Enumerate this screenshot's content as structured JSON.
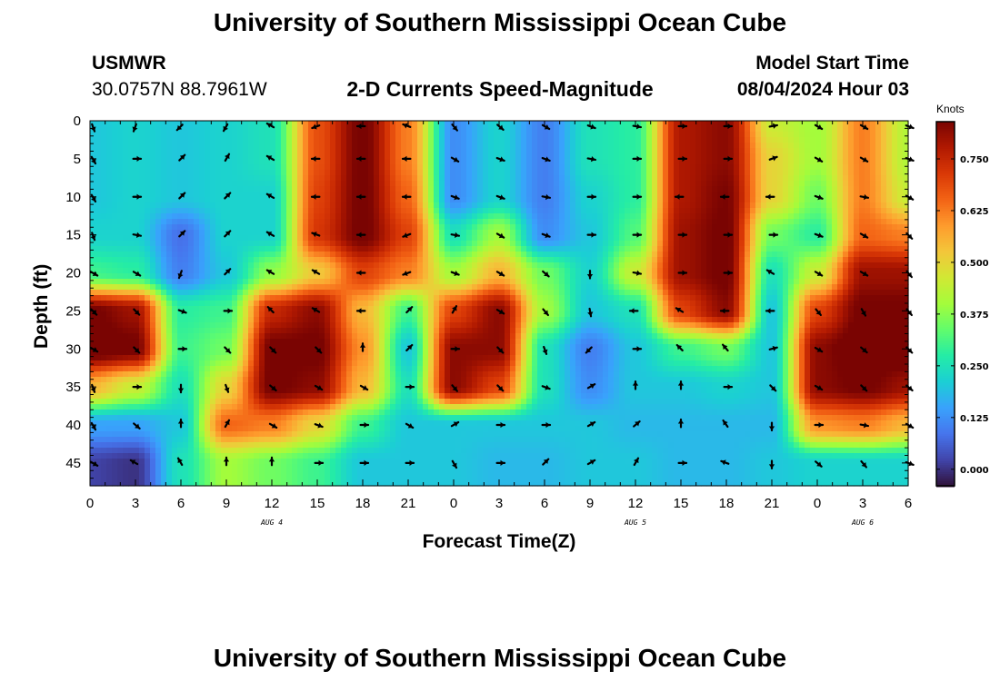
{
  "header": {
    "title": "University of Southern Mississippi Ocean Cube",
    "station": "USMWR",
    "coords": "30.0757N  88.7961W",
    "subtitle": "2-D Currents Speed-Magnitude",
    "model_label": "Model Start Time",
    "model_time": "08/04/2024 Hour 03"
  },
  "footer": {
    "title": "University of Southern Mississippi Ocean Cube"
  },
  "colorbar": {
    "title": "Knots",
    "ticks": [
      "0.000",
      "0.125",
      "0.250",
      "0.375",
      "0.500",
      "0.625",
      "0.750"
    ],
    "tick_values": [
      0,
      0.125,
      0.25,
      0.375,
      0.5,
      0.625,
      0.75
    ],
    "range": [
      -0.04,
      0.84
    ],
    "colors": [
      "#30123b",
      "#4145ab",
      "#4675ed",
      "#39a2fc",
      "#1bcfd4",
      "#24eca6",
      "#61fc6c",
      "#a4fc3b",
      "#d1e834",
      "#f3c63a",
      "#fe9b2d",
      "#f36315",
      "#d93806",
      "#b11901",
      "#7a0402"
    ]
  },
  "chart_data": {
    "type": "heatmap",
    "title": "2-D Currents Speed-Magnitude",
    "xlabel": "Forecast Time(Z)",
    "ylabel": "Depth (ft)",
    "xlim": [
      0,
      54
    ],
    "ylim": [
      0,
      48
    ],
    "x_tick_values": [
      0,
      3,
      6,
      9,
      12,
      15,
      18,
      21,
      24,
      27,
      30,
      33,
      36,
      39,
      42,
      45,
      48,
      51,
      54
    ],
    "x_tick_labels": [
      "0",
      "3",
      "6",
      "9",
      "12",
      "15",
      "18",
      "21",
      "0",
      "3",
      "6",
      "9",
      "12",
      "15",
      "18",
      "21",
      "0",
      "3",
      "6"
    ],
    "y_ticks": [
      0,
      5,
      10,
      15,
      20,
      25,
      30,
      35,
      40,
      45
    ],
    "date_labels": [
      {
        "x": 12,
        "text": "AUG 4"
      },
      {
        "x": 36,
        "text": "AUG 5"
      },
      {
        "x": 51,
        "text": "AUG 6"
      }
    ],
    "units": "Knots",
    "x": [
      0,
      3,
      6,
      9,
      12,
      15,
      18,
      21,
      24,
      27,
      30,
      33,
      36,
      39,
      42,
      45,
      48,
      51,
      54
    ],
    "depths": [
      0,
      5,
      10,
      15,
      20,
      25,
      30,
      35,
      40,
      45
    ],
    "speed": [
      [
        0.2,
        0.22,
        0.2,
        0.22,
        0.25,
        0.68,
        0.85,
        0.62,
        0.12,
        0.22,
        0.1,
        0.25,
        0.28,
        0.78,
        0.82,
        0.45,
        0.4,
        0.62,
        0.42
      ],
      [
        0.2,
        0.22,
        0.2,
        0.22,
        0.25,
        0.68,
        0.85,
        0.62,
        0.12,
        0.22,
        0.1,
        0.25,
        0.28,
        0.78,
        0.82,
        0.5,
        0.4,
        0.62,
        0.42
      ],
      [
        0.2,
        0.22,
        0.2,
        0.22,
        0.22,
        0.7,
        0.85,
        0.65,
        0.12,
        0.22,
        0.1,
        0.22,
        0.28,
        0.78,
        0.84,
        0.5,
        0.35,
        0.62,
        0.45
      ],
      [
        0.22,
        0.22,
        0.08,
        0.22,
        0.22,
        0.72,
        0.85,
        0.7,
        0.25,
        0.4,
        0.12,
        0.2,
        0.32,
        0.8,
        0.85,
        0.35,
        0.28,
        0.65,
        0.62
      ],
      [
        0.3,
        0.28,
        0.1,
        0.2,
        0.38,
        0.52,
        0.7,
        0.62,
        0.4,
        0.55,
        0.35,
        0.22,
        0.45,
        0.8,
        0.85,
        0.25,
        0.45,
        0.8,
        0.8
      ],
      [
        0.85,
        0.8,
        0.28,
        0.3,
        0.75,
        0.82,
        0.55,
        0.3,
        0.7,
        0.82,
        0.4,
        0.2,
        0.25,
        0.7,
        0.82,
        0.2,
        0.7,
        0.85,
        0.85
      ],
      [
        0.88,
        0.85,
        0.3,
        0.35,
        0.85,
        0.85,
        0.6,
        0.2,
        0.82,
        0.82,
        0.25,
        0.1,
        0.2,
        0.3,
        0.35,
        0.2,
        0.82,
        0.88,
        0.88
      ],
      [
        0.55,
        0.45,
        0.25,
        0.5,
        0.85,
        0.82,
        0.55,
        0.25,
        0.82,
        0.7,
        0.25,
        0.12,
        0.2,
        0.2,
        0.22,
        0.2,
        0.82,
        0.85,
        0.8
      ],
      [
        0.15,
        0.15,
        0.2,
        0.65,
        0.62,
        0.5,
        0.3,
        0.2,
        0.2,
        0.2,
        0.2,
        0.2,
        0.18,
        0.18,
        0.18,
        0.18,
        0.6,
        0.62,
        0.55
      ],
      [
        0.02,
        0.0,
        0.25,
        0.4,
        0.35,
        0.3,
        0.2,
        0.2,
        0.2,
        0.18,
        0.18,
        0.2,
        0.2,
        0.18,
        0.18,
        0.2,
        0.22,
        0.22,
        0.22
      ]
    ],
    "direction_deg": [
      [
        160,
        200,
        225,
        210,
        300,
        250,
        270,
        290,
        140,
        130,
        120,
        110,
        100,
        90,
        90,
        80,
        120,
        120,
        110
      ],
      [
        150,
        90,
        45,
        30,
        300,
        270,
        270,
        270,
        120,
        110,
        110,
        100,
        90,
        90,
        90,
        70,
        120,
        120,
        110
      ],
      [
        150,
        90,
        45,
        45,
        300,
        270,
        270,
        270,
        110,
        110,
        100,
        90,
        90,
        270,
        270,
        270,
        110,
        100,
        120
      ],
      [
        160,
        100,
        45,
        45,
        300,
        290,
        270,
        250,
        100,
        120,
        110,
        90,
        90,
        90,
        90,
        90,
        110,
        120,
        135
      ],
      [
        120,
        120,
        200,
        45,
        300,
        300,
        270,
        250,
        110,
        120,
        130,
        180,
        100,
        90,
        90,
        300,
        120,
        120,
        140
      ],
      [
        135,
        135,
        110,
        90,
        315,
        300,
        270,
        45,
        30,
        120,
        140,
        170,
        270,
        300,
        270,
        270,
        140,
        150,
        140
      ],
      [
        120,
        135,
        90,
        135,
        135,
        135,
        0,
        45,
        90,
        135,
        160,
        225,
        90,
        315,
        320,
        75,
        120,
        130,
        135
      ],
      [
        160,
        90,
        180,
        160,
        130,
        120,
        120,
        90,
        140,
        135,
        110,
        60,
        0,
        0,
        90,
        135,
        120,
        135,
        130
      ],
      [
        150,
        130,
        0,
        30,
        120,
        110,
        90,
        120,
        60,
        90,
        90,
        60,
        50,
        0,
        325,
        180,
        90,
        100,
        120
      ],
      [
        120,
        300,
        330,
        0,
        0,
        90,
        90,
        90,
        150,
        90,
        45,
        60,
        30,
        90,
        290,
        180,
        130,
        140,
        110
      ]
    ]
  }
}
